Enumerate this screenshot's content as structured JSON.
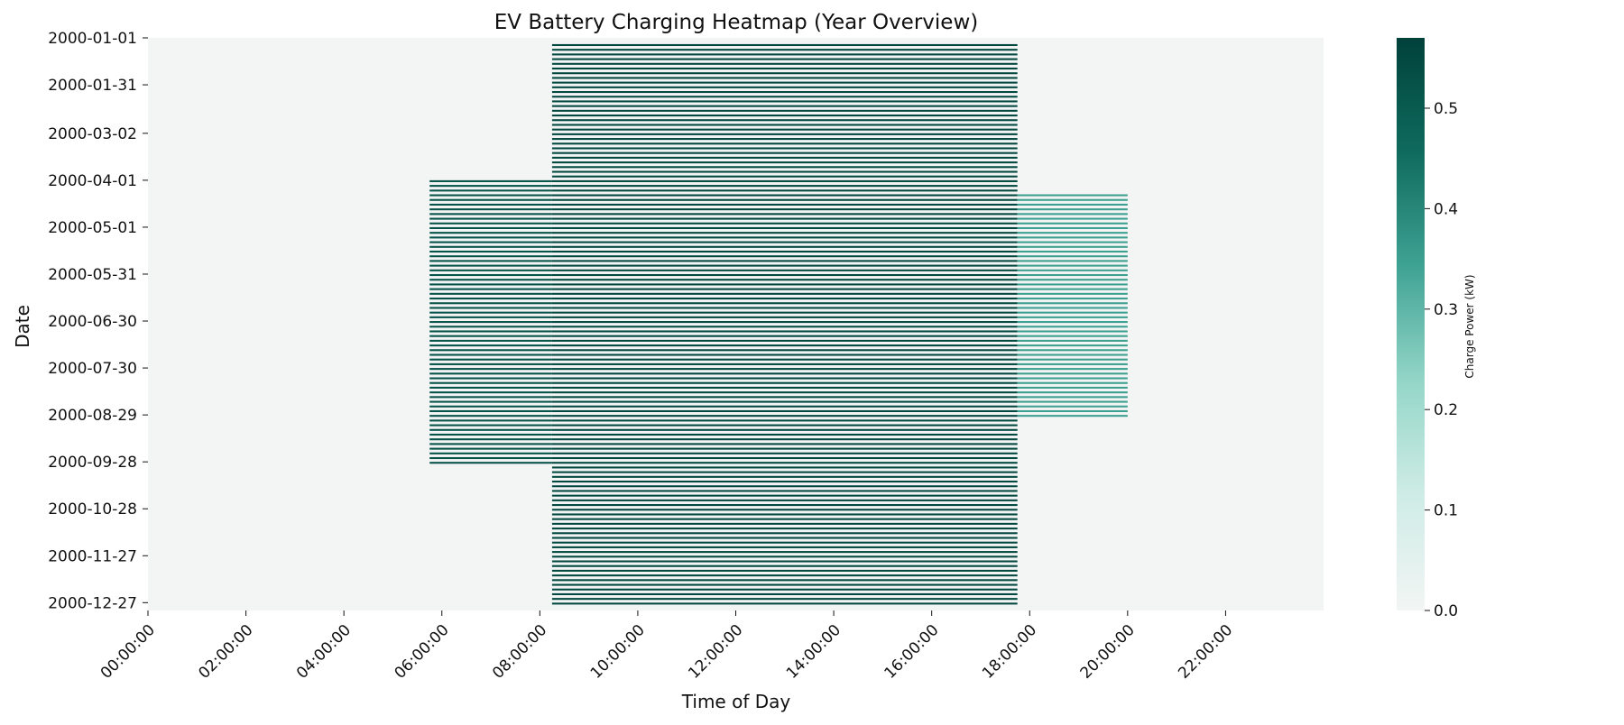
{
  "chart_data": {
    "type": "heatmap",
    "title": "EV Battery Charging Heatmap (Year Overview)",
    "xlabel": "Time of Day",
    "ylabel": "Date",
    "colorbar_label": "Charge Power (kW)",
    "x_ticks": [
      "00:00:00",
      "02:00:00",
      "04:00:00",
      "06:00:00",
      "08:00:00",
      "10:00:00",
      "12:00:00",
      "14:00:00",
      "16:00:00",
      "18:00:00",
      "20:00:00",
      "22:00:00"
    ],
    "y_ticks": [
      "2000-01-01",
      "2000-01-31",
      "2000-03-02",
      "2000-04-01",
      "2000-05-01",
      "2000-05-31",
      "2000-06-30",
      "2000-07-30",
      "2000-08-29",
      "2000-09-28",
      "2000-10-28",
      "2000-11-27",
      "2000-12-27"
    ],
    "colorbar_ticks": [
      0.0,
      0.1,
      0.2,
      0.3,
      0.4,
      0.5
    ],
    "colorbar_tick_labels": [
      "0.0",
      "0.1",
      "0.2",
      "0.3",
      "0.4",
      "0.5"
    ],
    "value_range": [
      0.0,
      0.57
    ],
    "colormap_colors": [
      "#f2f5f4",
      "#cfece6",
      "#94d6c8",
      "#3fa394",
      "#0f6b5e",
      "#00413a"
    ],
    "x_range": [
      "00:00:00",
      "24:00:00"
    ],
    "y_range": [
      "2000-01-01",
      "2000-12-31"
    ],
    "bands": [
      {
        "from": "2000-04-01",
        "to": "2000-09-30",
        "start": "05:45:00",
        "end": "08:15:00",
        "value": 0.52
      },
      {
        "from": "2000-01-05",
        "to": "2000-12-28",
        "start": "08:15:00",
        "end": "17:45:00",
        "value": 0.55
      },
      {
        "from": "2000-04-10",
        "to": "2000-08-31",
        "start": "17:45:00",
        "end": "20:00:00",
        "value": 0.35
      }
    ]
  }
}
